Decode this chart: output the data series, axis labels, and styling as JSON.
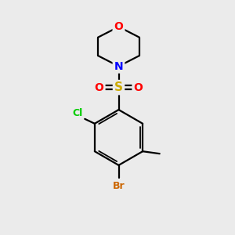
{
  "background_color": "#ebebeb",
  "bond_color": "#000000",
  "atom_colors": {
    "O": "#ff0000",
    "N": "#0000ff",
    "S": "#ccaa00",
    "Cl": "#00cc00",
    "Br": "#cc6600",
    "C": "#000000"
  },
  "figsize": [
    3.0,
    3.0
  ],
  "dpi": 100
}
